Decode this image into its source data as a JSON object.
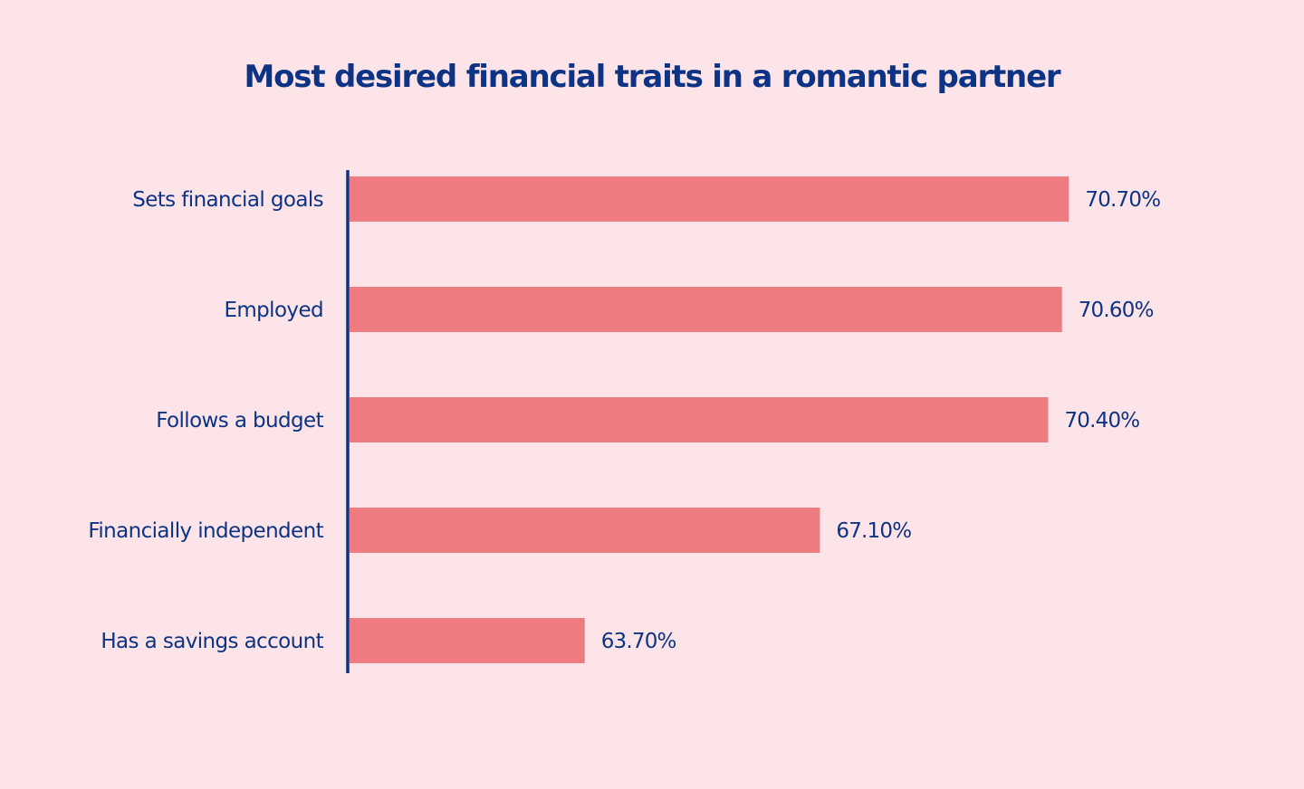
{
  "colors": {
    "background": "#fde4e8",
    "bar": "#ed7b80",
    "text": "#0d3384",
    "axis": "#0d3384"
  },
  "chart_data": {
    "type": "bar",
    "orientation": "horizontal",
    "title": "Most desired financial traits in a romantic partner",
    "xlabel": "",
    "ylabel": "",
    "categories": [
      "Sets financial goals",
      "Employed",
      "Follows a budget",
      "Financially independent",
      "Has a savings account"
    ],
    "values": [
      70.7,
      70.6,
      70.4,
      67.1,
      63.7
    ],
    "value_labels": [
      "70.70%",
      "70.60%",
      "70.40%",
      "67.10%",
      "63.70%"
    ],
    "xlim": [
      60.3,
      70.8
    ],
    "grid": false,
    "legend": "none"
  }
}
